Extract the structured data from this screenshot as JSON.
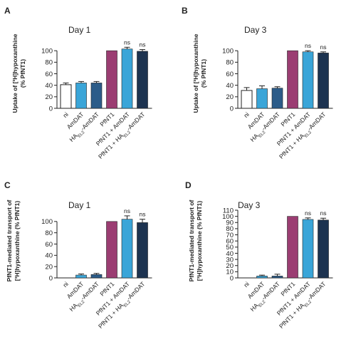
{
  "chart_data": [
    {
      "type": "bar",
      "panel": "A",
      "title": "Day 1",
      "ylabel_lines": [
        "Uptake of [³H]hypoxanthine",
        "(% PfNT1)"
      ],
      "categories": [
        "ni",
        "AmDAT",
        "HA_EL2-AmDAT",
        "PfNT1",
        "PfNT1 + AmDAT",
        "PfNT1 + HA_EL2-AmDAT"
      ],
      "values": [
        41,
        44,
        44,
        100,
        103,
        99
      ],
      "errors": [
        3,
        2.5,
        2.5,
        0,
        3,
        3
      ],
      "colors": [
        "#ffffff",
        "#3aa5d8",
        "#2c5c89",
        "#9b3d72",
        "#3aa5d8",
        "#1d3350"
      ],
      "annotations": [
        "",
        "",
        "",
        "",
        "ns",
        "ns"
      ],
      "ylim": [
        0,
        120
      ],
      "yticks": [
        0,
        20,
        40,
        60,
        80,
        100
      ]
    },
    {
      "type": "bar",
      "panel": "B",
      "title": "Day 3",
      "ylabel_lines": [
        "Uptake of [³H]hypoxanthine",
        "(% PfNT1)"
      ],
      "categories": [
        "ni",
        "AmDAT",
        "HA_EL2-AmDAT",
        "PfNT1",
        "PfNT1 + AmDAT",
        "PfNT1 + HA_EL2-AmDAT"
      ],
      "values": [
        31,
        34,
        35,
        100,
        98,
        96
      ],
      "errors": [
        5,
        5,
        2.5,
        0,
        2,
        2
      ],
      "colors": [
        "#ffffff",
        "#3aa5d8",
        "#2c5c89",
        "#9b3d72",
        "#3aa5d8",
        "#1d3350"
      ],
      "annotations": [
        "",
        "",
        "",
        "",
        "ns",
        "ns"
      ],
      "ylim": [
        0,
        120
      ],
      "yticks": [
        0,
        20,
        40,
        60,
        80,
        100
      ]
    },
    {
      "type": "bar",
      "panel": "C",
      "title": "Day 1",
      "ylabel_lines": [
        "PfNT1-mediated transport of",
        "[³H]hypoxanthine (% PfNT1)"
      ],
      "categories": [
        "ni",
        "AmDAT",
        "HA_EL2-AmDAT",
        "PfNT1",
        "PfNT1 + AmDAT",
        "PfNT1 + HA_EL2-AmDAT"
      ],
      "values": [
        0,
        5,
        6,
        100,
        104,
        98
      ],
      "errors": [
        0,
        2,
        2,
        0,
        6,
        6
      ],
      "colors": [
        "#ffffff",
        "#3aa5d8",
        "#2c5c89",
        "#9b3d72",
        "#3aa5d8",
        "#1d3350"
      ],
      "annotations": [
        "",
        "",
        "",
        "",
        "ns",
        "ns"
      ],
      "ylim": [
        0,
        120
      ],
      "yticks": [
        0,
        20,
        40,
        60,
        80,
        100
      ]
    },
    {
      "type": "bar",
      "panel": "D",
      "title": "Day 3",
      "ylabel_lines": [
        "PfNT1-mediated transport of",
        "[³H]hypoxanthine (% PfNT1)"
      ],
      "categories": [
        "ni",
        "AmDAT",
        "HA_EL2-AmDAT",
        "PfNT1",
        "PfNT1 + AmDAT",
        "PfNT1 + HA_EL2-AmDAT"
      ],
      "values": [
        0,
        3,
        3,
        100,
        95,
        94
      ],
      "errors": [
        0,
        1.5,
        3,
        0,
        2.5,
        3
      ],
      "colors": [
        "#ffffff",
        "#3aa5d8",
        "#2c5c89",
        "#9b3d72",
        "#3aa5d8",
        "#1d3350"
      ],
      "annotations": [
        "",
        "",
        "",
        "",
        "ns",
        "ns"
      ],
      "ylim": [
        0,
        110
      ],
      "yticks": [
        0,
        10,
        20,
        30,
        40,
        50,
        60,
        70,
        80,
        90,
        100,
        110
      ]
    }
  ]
}
